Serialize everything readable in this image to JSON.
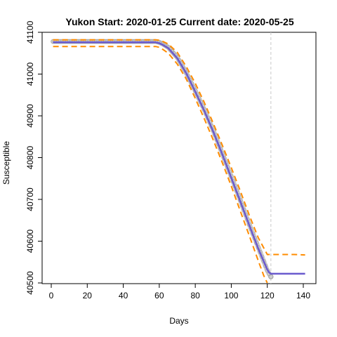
{
  "chart_data": {
    "type": "line",
    "title": "Yukon Start:  2020-01-25   Current date:  2020-05-25",
    "xlabel": "Days",
    "ylabel": "Susceptible",
    "xlim": [
      0,
      140
    ],
    "ylim": [
      40500,
      41100
    ],
    "xticks": [
      0,
      20,
      40,
      60,
      80,
      100,
      120,
      140
    ],
    "yticks": [
      40500,
      40600,
      40700,
      40800,
      40900,
      41000,
      41100
    ],
    "current_day": 122,
    "grid": false,
    "legend": "none",
    "colors": {
      "observed": "#b0b0b0",
      "fit": "#6a5acd",
      "bounds": "#ff8c00",
      "current_line": "#c8c8c8"
    },
    "series": [
      {
        "role": "observed",
        "x": [
          1,
          10,
          20,
          30,
          40,
          50,
          58,
          60,
          62,
          65,
          70,
          75,
          80,
          85,
          90,
          95,
          100,
          105,
          110,
          115,
          120,
          121,
          122
        ],
        "y": [
          41078,
          41078,
          41078,
          41078,
          41078,
          41078,
          41078,
          41076,
          41072,
          41064,
          41040,
          41003,
          40960,
          40915,
          40865,
          40810,
          40755,
          40698,
          40640,
          40585,
          40530,
          40522,
          40515
        ]
      },
      {
        "role": "fit",
        "x": [
          1,
          10,
          20,
          30,
          40,
          50,
          58,
          60,
          62,
          65,
          70,
          75,
          80,
          85,
          90,
          95,
          100,
          105,
          110,
          115,
          120,
          121,
          122,
          125,
          130,
          135,
          141
        ],
        "y": [
          41076,
          41076,
          41076,
          41076,
          41076,
          41076,
          41076,
          41074,
          41070,
          41062,
          41038,
          41002,
          40958,
          40912,
          40862,
          40808,
          40752,
          40695,
          40638,
          40582,
          40532,
          40525,
          40522,
          40522,
          40522,
          40522,
          40522
        ]
      },
      {
        "role": "upper-bound",
        "x": [
          1,
          10,
          20,
          30,
          40,
          50,
          58,
          60,
          62,
          65,
          70,
          75,
          80,
          85,
          90,
          95,
          100,
          105,
          110,
          115,
          120,
          122,
          125,
          130,
          135,
          141
        ],
        "y": [
          41082,
          41082,
          41082,
          41082,
          41082,
          41082,
          41082,
          41081,
          41078,
          41072,
          41052,
          41018,
          40978,
          40932,
          40882,
          40830,
          40776,
          40720,
          40662,
          40608,
          40568,
          40568,
          40568,
          40568,
          40568,
          40567
        ]
      },
      {
        "role": "lower-bound",
        "x": [
          1,
          10,
          20,
          30,
          40,
          50,
          58,
          60,
          62,
          65,
          70,
          75,
          80,
          85,
          90,
          95,
          100,
          105,
          110,
          115,
          118,
          120
        ],
        "y": [
          41066,
          41066,
          41066,
          41066,
          41066,
          41066,
          41066,
          41064,
          41059,
          41050,
          41024,
          40988,
          40942,
          40893,
          40842,
          40788,
          40732,
          40672,
          40613,
          40553,
          40518,
          40500
        ]
      }
    ]
  }
}
